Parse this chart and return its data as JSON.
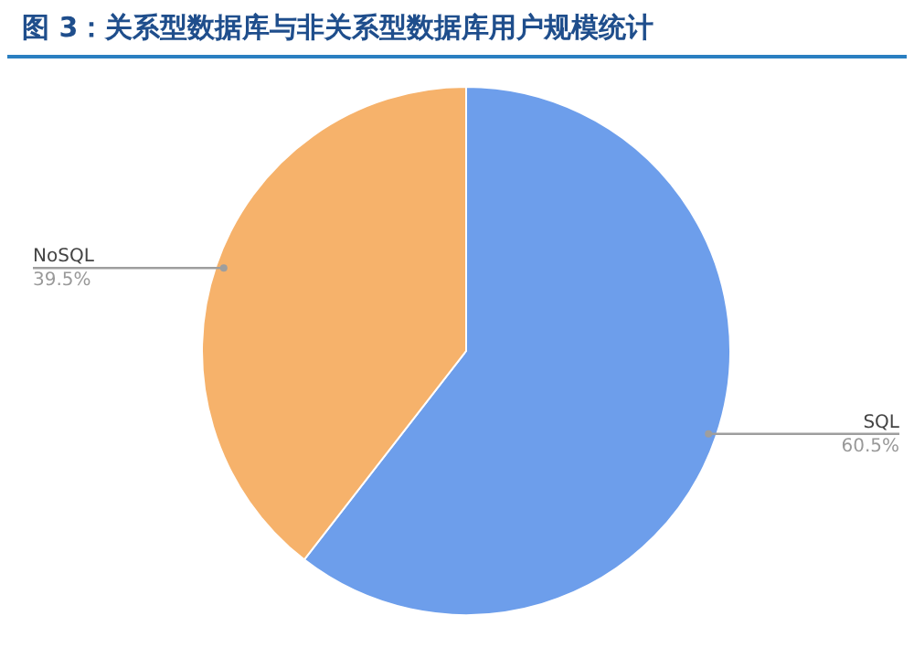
{
  "chart_data": {
    "type": "pie",
    "title": "图 3：关系型数据库与非关系型数据库用户规模统计",
    "categories": [
      "SQL",
      "NoSQL"
    ],
    "values": [
      60.5,
      39.5
    ],
    "colors": [
      "#6d9eeb",
      "#f6b26b"
    ],
    "value_labels": [
      "60.5%",
      "39.5%"
    ],
    "legend": false
  }
}
